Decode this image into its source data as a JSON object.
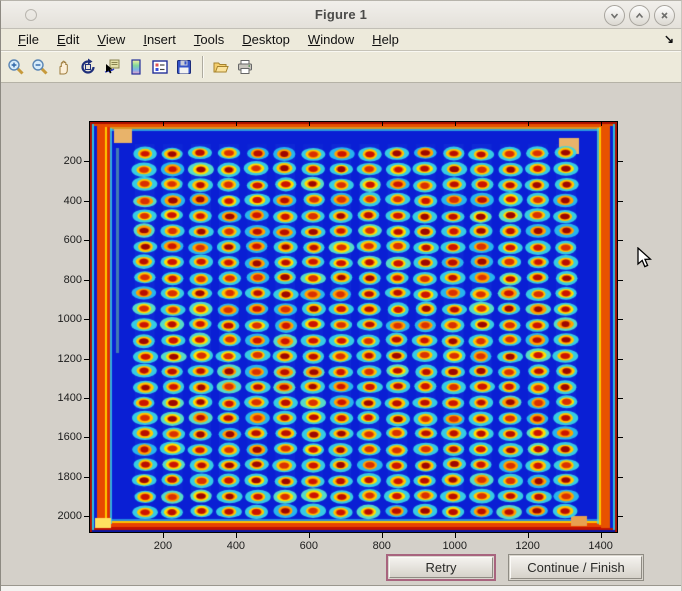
{
  "window": {
    "title": "Figure 1",
    "controls": {
      "minimize": "chevron-down",
      "maximize": "chevron-up",
      "close": "x"
    }
  },
  "menu": {
    "items": [
      {
        "label": "File"
      },
      {
        "label": "Edit"
      },
      {
        "label": "View"
      },
      {
        "label": "Insert"
      },
      {
        "label": "Tools"
      },
      {
        "label": "Desktop"
      },
      {
        "label": "Window"
      },
      {
        "label": "Help"
      }
    ],
    "overflow_arrow": "↘"
  },
  "toolbar": {
    "buttons": [
      {
        "name": "zoom-in"
      },
      {
        "name": "zoom-out"
      },
      {
        "name": "pan"
      },
      {
        "name": "rotate-3d"
      },
      {
        "name": "data-cursor"
      },
      {
        "name": "colorbar"
      },
      {
        "name": "legend"
      },
      {
        "name": "save"
      },
      {
        "name": "open"
      },
      {
        "name": "print"
      }
    ]
  },
  "figure": {
    "type": "heatmap-image",
    "colormap": "jet",
    "x_ticks": [
      200,
      400,
      600,
      800,
      1000,
      1200,
      1400
    ],
    "y_ticks": [
      200,
      400,
      600,
      800,
      1000,
      1200,
      1400,
      1600,
      1800,
      2000
    ],
    "x_max": 1445,
    "y_max": 2080,
    "grid": {
      "rows": 24,
      "cols": 16,
      "x_first": 150,
      "x_spacing": 77,
      "y_first": 160,
      "y_spacing": 79
    },
    "colors": {
      "background": "#0a1fd4",
      "spot_center": "#c81300",
      "spot_ring": "#ffc800",
      "spot_halo": "#38d6e6",
      "border_band": "#e84a00",
      "corner_patch": "#e8b36a"
    }
  },
  "action_buttons": {
    "retry": "Retry",
    "continue_finish": "Continue / Finish"
  }
}
